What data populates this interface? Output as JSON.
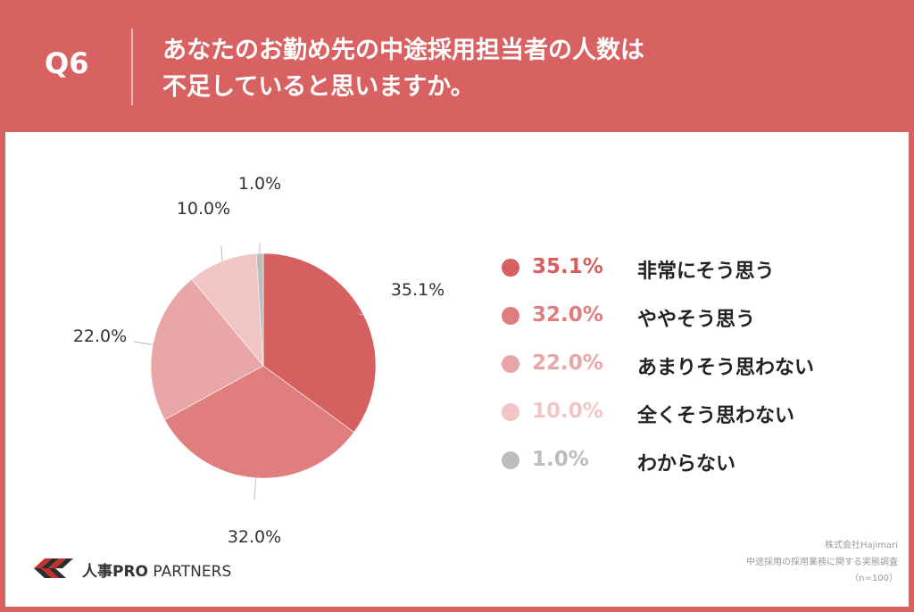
{
  "header": {
    "question_label": "Q6",
    "title_line1": "あなたのお勤め先の中途採用担当者の人数は",
    "title_line2": "不足していると思いますか。"
  },
  "chart_data": {
    "type": "pie",
    "start_angle": "12 o'clock",
    "direction": "clockwise",
    "slices": [
      {
        "label": "非常にそう思う",
        "value": 35.1,
        "value_label": "35.1%",
        "color": "#d65f5f"
      },
      {
        "label": "ややそう思う",
        "value": 32.0,
        "value_label": "32.0%",
        "color": "#e07e7e"
      },
      {
        "label": "あまりそう思わない",
        "value": 22.0,
        "value_label": "22.0%",
        "color": "#e9a6a6"
      },
      {
        "label": "全くそう思わない",
        "value": 10.0,
        "value_label": "10.0%",
        "color": "#f1c5c5"
      },
      {
        "label": "わからない",
        "value": 1.0,
        "value_label": "1.0%",
        "color": "#bdbdbd"
      }
    ],
    "legend_position": "right"
  },
  "brand": {
    "name_strong": "人事PRO",
    "name_rest": " PARTNERS"
  },
  "source": {
    "company": "株式会社Hajimari",
    "survey": "中途採用の採用業務に関する実態調査",
    "sample": "（n=100）"
  }
}
